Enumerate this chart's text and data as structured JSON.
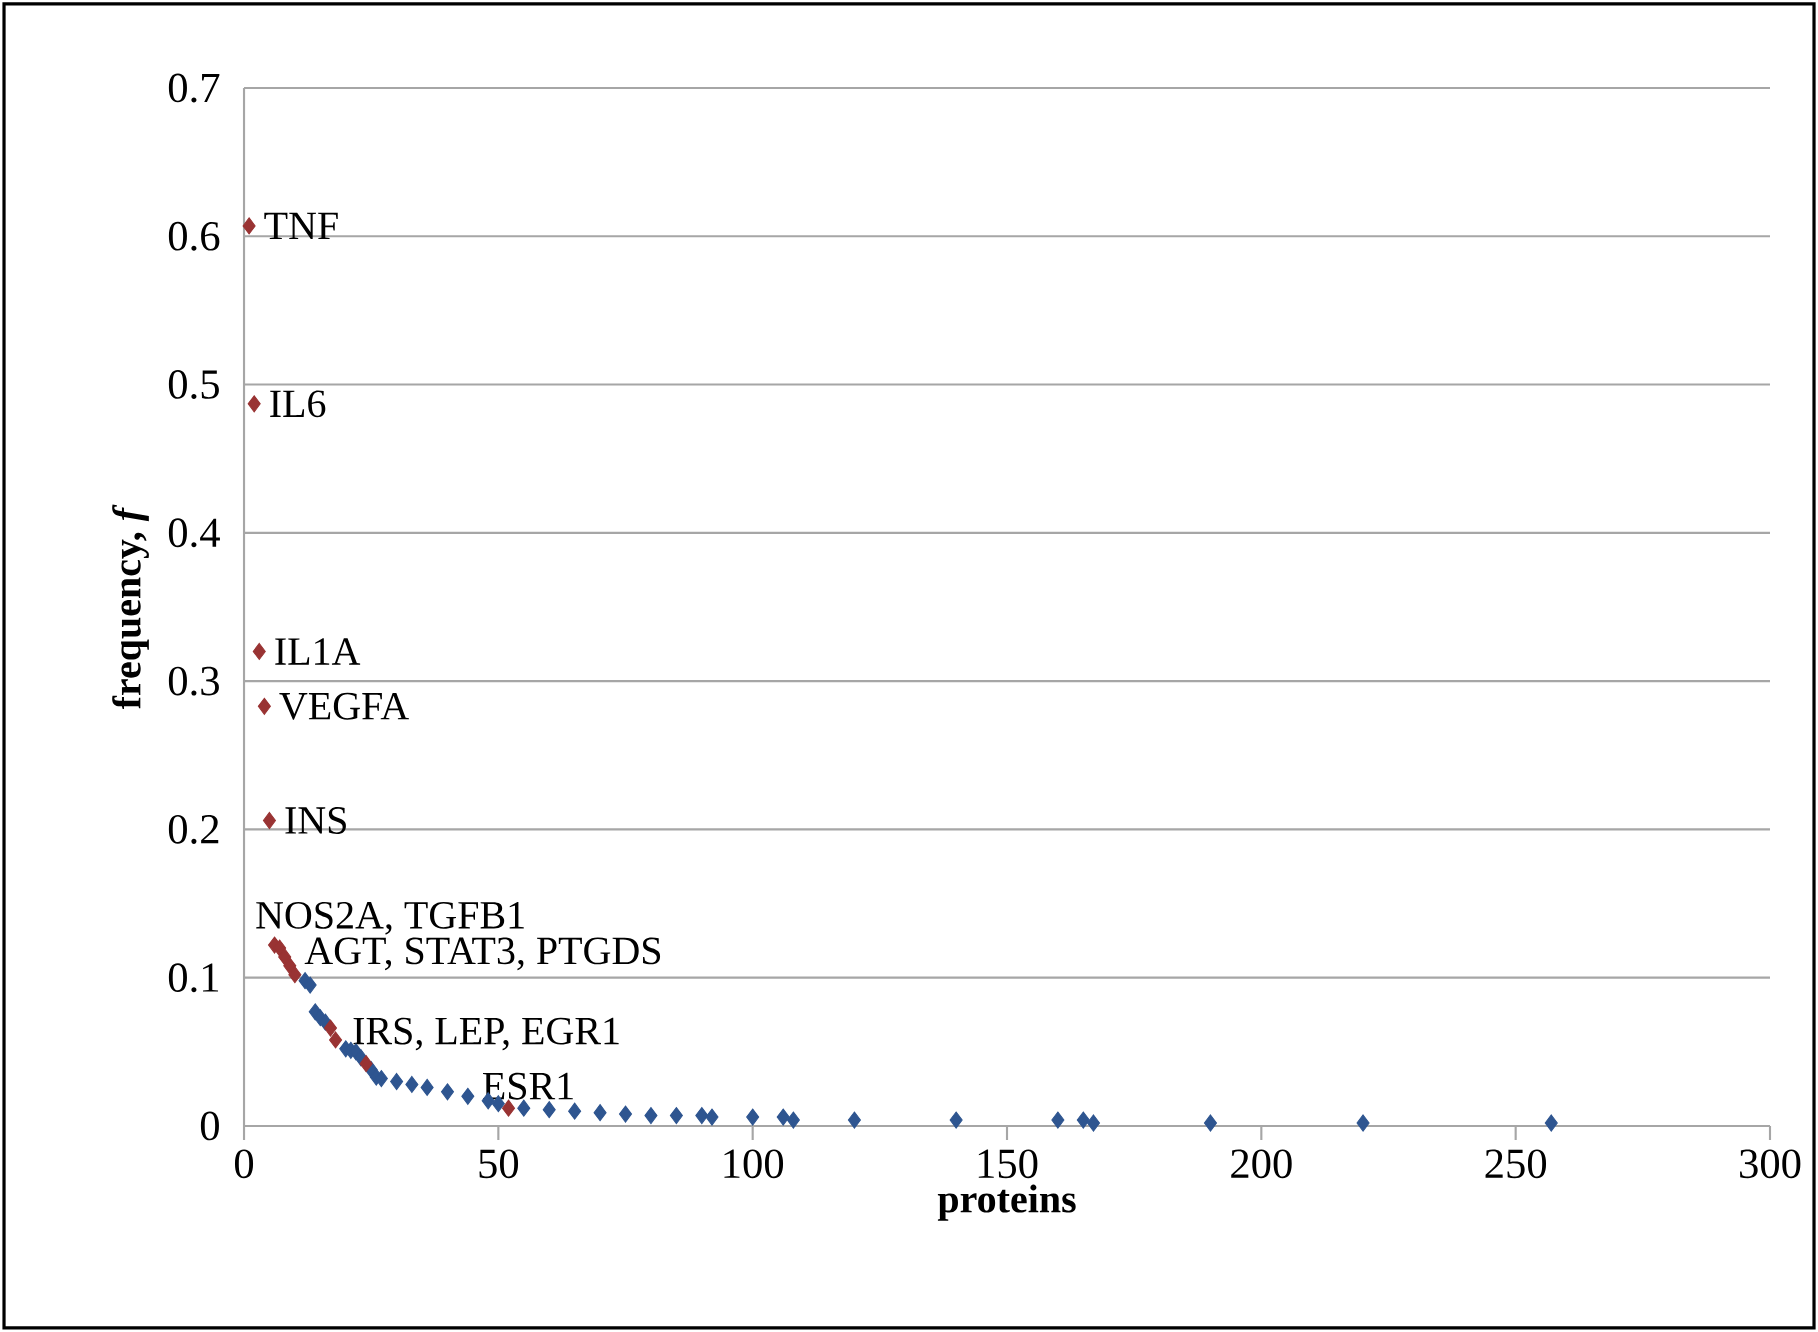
{
  "chart_data": {
    "type": "scatter",
    "xlabel": "proteins",
    "ylabel": "frequency, *f*",
    "xlim": [
      0,
      300
    ],
    "xticks": [
      0,
      50,
      100,
      150,
      200,
      250,
      300
    ],
    "ylim": [
      0,
      0.7
    ],
    "yticks": [
      0,
      0.1,
      0.2,
      0.3,
      0.4,
      0.5,
      0.6,
      0.7
    ],
    "grid": "y",
    "marker": "diamond",
    "series": [
      {
        "color": "#2e5590",
        "x": [
          12,
          13,
          14,
          15,
          16,
          20,
          21,
          22,
          23,
          25,
          26,
          27,
          30,
          33,
          36,
          40,
          44,
          48,
          50,
          55,
          60,
          65,
          70,
          75,
          80,
          85,
          90,
          92,
          100,
          106,
          108,
          120,
          140,
          160,
          165,
          167,
          190,
          220,
          257
        ],
        "values": [
          0.098,
          0.095,
          0.077,
          0.073,
          0.07,
          0.052,
          0.051,
          0.05,
          0.046,
          0.038,
          0.033,
          0.032,
          0.03,
          0.028,
          0.026,
          0.023,
          0.02,
          0.017,
          0.015,
          0.012,
          0.011,
          0.01,
          0.009,
          0.008,
          0.007,
          0.007,
          0.007,
          0.006,
          0.006,
          0.006,
          0.004,
          0.004,
          0.004,
          0.004,
          0.004,
          0.002,
          0.002,
          0.002,
          0.002
        ]
      },
      {
        "color": "#993333",
        "x": [
          1,
          2,
          3,
          4,
          5,
          6,
          7,
          8,
          9,
          10,
          17,
          18,
          24,
          52
        ],
        "values": [
          0.607,
          0.487,
          0.32,
          0.283,
          0.206,
          0.122,
          0.12,
          0.114,
          0.108,
          0.102,
          0.066,
          0.058,
          0.042,
          0.012
        ]
      }
    ],
    "annotations": [
      {
        "text": "TNF",
        "x": 1,
        "y": 0.607
      },
      {
        "text": "IL6",
        "x": 2,
        "y": 0.487
      },
      {
        "text": "IL1A",
        "x": 3,
        "y": 0.32
      },
      {
        "text": "VEGFA",
        "x": 4,
        "y": 0.283
      },
      {
        "text": "INS",
        "x": 5,
        "y": 0.206
      },
      {
        "text": "NOS2A, TGFB1",
        "x": 6,
        "y": 0.122
      },
      {
        "text": "AGT, STAT3, PTGDS",
        "x": 9,
        "y": 0.108
      },
      {
        "text": "IRS, LEP, EGR1",
        "x": 18,
        "y": 0.058
      },
      {
        "text": "ESR1",
        "x": 52,
        "y": 0.012
      }
    ]
  }
}
